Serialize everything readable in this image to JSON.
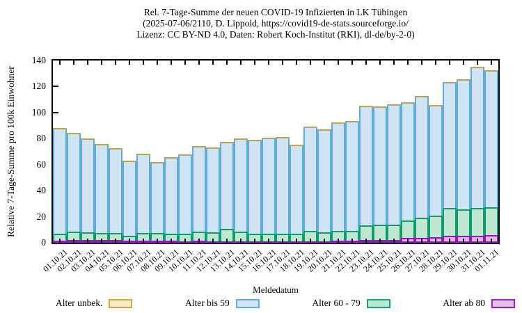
{
  "header": {
    "lines": [
      "Rel. 7-Tage-Summe der neuen COVID-19 Infizierten in LK Tübingen",
      "(2025-07-06/2110, D. Lippold, https://covid19-de-stats.sourceforge.io/",
      "Lizenz: CC BY-ND 4.0, Daten: Robert Koch-Institut (RKI), dl-de/by-2-0)"
    ]
  },
  "chart_data": {
    "type": "bar",
    "stacked": true,
    "title": "Rel. 7-Tage-Summe der neuen COVID-19 Infizierten in LK Tübingen (2025-07-06/2110, D. Lippold, https://covid19-de-stats.sourceforge.io/ Lizenz: CC BY-ND 4.0, Daten: Robert Koch-Institut (RKI), dl-de/by-2-0)",
    "xlabel": "Meldedatum",
    "ylabel": "Relative 7-Tage-Summe pro 100k Einwohner",
    "ylim": [
      0,
      140
    ],
    "yticks": [
      0,
      20,
      40,
      60,
      80,
      100,
      120,
      140
    ],
    "grid": false,
    "legend_position": "bottom",
    "categories": [
      "01.10.21",
      "02.10.21",
      "03.10.21",
      "04.10.21",
      "05.10.21",
      "06.10.21",
      "07.10.21",
      "08.10.21",
      "09.10.21",
      "10.10.21",
      "11.10.21",
      "12.10.21",
      "13.10.21",
      "14.10.21",
      "15.10.21",
      "16.10.21",
      "17.10.21",
      "18.10.21",
      "19.10.21",
      "20.10.21",
      "21.10.21",
      "22.10.21",
      "23.10.21",
      "24.10.21",
      "25.10.21",
      "26.10.21",
      "27.10.21",
      "28.10.21",
      "29.10.21",
      "30.10.21",
      "31.10.21",
      "01.11.21"
    ],
    "series": [
      {
        "name": "Alter ab 80",
        "fill": "#e3b6eb",
        "border": "#9a14c4",
        "values": [
          1.8,
          2,
          2,
          2,
          2,
          1.5,
          1.5,
          1.5,
          1.5,
          1.2,
          1.5,
          1.2,
          1.2,
          1.2,
          1,
          1,
          1,
          1,
          1.2,
          1.2,
          1.5,
          1.5,
          2,
          2,
          2.2,
          3.5,
          4,
          4.5,
          5.4,
          5.4,
          5.4,
          5.7
        ]
      },
      {
        "name": "Alter 60 - 79",
        "fill": "#c0e7d2",
        "border": "#0d9c6c",
        "values": [
          4.9,
          6.6,
          6.1,
          5.5,
          5.5,
          4,
          6,
          6,
          5.5,
          5.8,
          7.1,
          6.8,
          9.3,
          7.2,
          6,
          6,
          6,
          6,
          8.1,
          6.9,
          7.8,
          7.5,
          11.5,
          11.7,
          11.5,
          13.5,
          15,
          16.5,
          21.1,
          20.1,
          21.1,
          21.6
        ]
      },
      {
        "name": "Alter bis 59",
        "fill": "#cfe4f5",
        "border": "#5facdf",
        "values": [
          81.3,
          75.9,
          71.9,
          68.5,
          65,
          57.5,
          61,
          54.5,
          58.5,
          61,
          65.9,
          65,
          67,
          71.6,
          72,
          73.5,
          74,
          68.5,
          79.7,
          78.9,
          83.2,
          84.5,
          92,
          90.8,
          92.8,
          91,
          93.5,
          85,
          97,
          100,
          108.5,
          105.2
        ]
      },
      {
        "name": "Alter unbek.",
        "fill": "#f7e9c4",
        "border": "#b9a35f",
        "values": [
          0,
          0,
          0,
          0,
          0,
          0,
          0,
          0,
          0,
          0,
          0,
          0,
          0,
          0,
          0,
          0,
          0,
          0,
          0,
          0,
          0,
          0,
          0,
          0,
          0,
          0,
          0,
          0,
          0,
          0,
          0,
          0
        ]
      }
    ],
    "totals": [
      88,
      84.5,
      80,
      76,
      72.5,
      63,
      68.5,
      62,
      65.5,
      68,
      74.5,
      73,
      77.5,
      80,
      79,
      80.5,
      81,
      75.5,
      89,
      87,
      92.5,
      93.5,
      105.5,
      104.5,
      106.5,
      108,
      112.5,
      106,
      123.5,
      125.5,
      135,
      132.5
    ]
  },
  "legend": {
    "items": [
      {
        "label": "Alter unbek.",
        "fill": "#f7e9c4",
        "border": "#e2a33b"
      },
      {
        "label": "Alter bis 59",
        "fill": "#cee7f8",
        "border": "#62b0e0"
      },
      {
        "label": "Alter 60 - 79",
        "fill": "#b9e6d0",
        "border": "#18a878"
      },
      {
        "label": "Alter ab 80",
        "fill": "#e6bbee",
        "border": "#a51ec8"
      }
    ]
  }
}
